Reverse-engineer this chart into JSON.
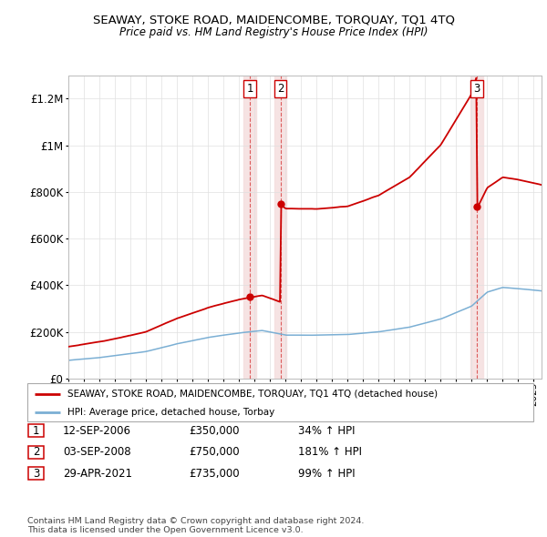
{
  "title": "SEAWAY, STOKE ROAD, MAIDENCOMBE, TORQUAY, TQ1 4TQ",
  "subtitle": "Price paid vs. HM Land Registry's House Price Index (HPI)",
  "ylim": [
    0,
    1300000
  ],
  "yticks": [
    0,
    200000,
    400000,
    600000,
    800000,
    1000000,
    1200000
  ],
  "ytick_labels": [
    "£0",
    "£200K",
    "£400K",
    "£600K",
    "£800K",
    "£1M",
    "£1.2M"
  ],
  "red_color": "#cc0000",
  "blue_color": "#7bafd4",
  "band_color": "#f5e0e0",
  "grid_color": "#e0e0e0",
  "sale_markers": [
    {
      "year": 2006.7,
      "price": 350000,
      "label": "1"
    },
    {
      "year": 2008.67,
      "price": 750000,
      "label": "2"
    },
    {
      "year": 2021.33,
      "price": 735000,
      "label": "3"
    }
  ],
  "legend_entries": [
    {
      "label": "SEAWAY, STOKE ROAD, MAIDENCOMBE, TORQUAY, TQ1 4TQ (detached house)",
      "color": "#cc0000"
    },
    {
      "label": "HPI: Average price, detached house, Torbay",
      "color": "#7bafd4"
    }
  ],
  "table_rows": [
    {
      "num": "1",
      "date": "12-SEP-2006",
      "price": "£350,000",
      "hpi": "34% ↑ HPI"
    },
    {
      "num": "2",
      "date": "03-SEP-2008",
      "price": "£750,000",
      "hpi": "181% ↑ HPI"
    },
    {
      "num": "3",
      "date": "29-APR-2021",
      "price": "£735,000",
      "hpi": "99% ↑ HPI"
    }
  ],
  "footnote": "Contains HM Land Registry data © Crown copyright and database right 2024.\nThis data is licensed under the Open Government Licence v3.0.",
  "xmin": 1995,
  "xmax": 2025.5
}
